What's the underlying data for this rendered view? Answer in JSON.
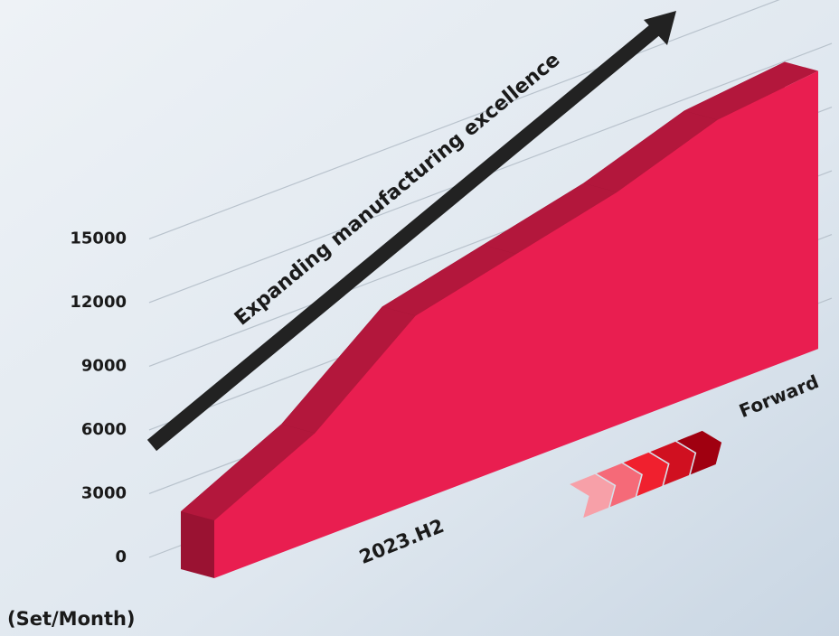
{
  "chart_data": {
    "type": "area",
    "y_label": "(Set/Month)",
    "categories": [
      null,
      null,
      "2023.H2",
      null,
      null,
      null,
      null
    ],
    "values": [
      2700,
      5000,
      8700,
      9800,
      10900,
      12500,
      13000
    ],
    "color": "#e91e50",
    "ylim": [
      0,
      15000
    ],
    "yticks": [
      0,
      3000,
      6000,
      9000,
      12000,
      15000
    ],
    "grid": true,
    "annotations": [
      "Expanding manufacturing excellence",
      "Forward"
    ]
  }
}
